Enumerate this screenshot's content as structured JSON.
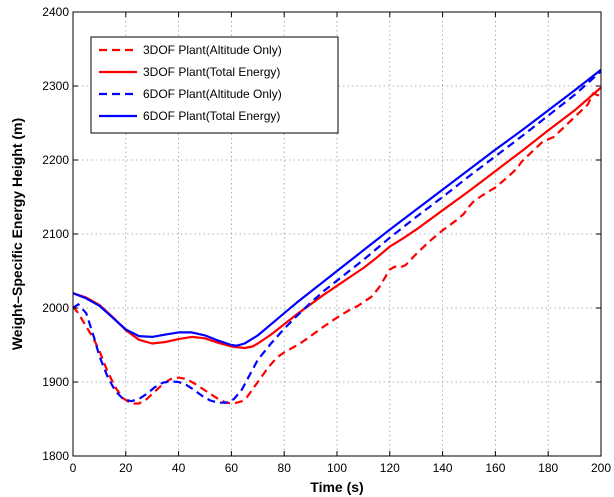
{
  "chart_data": {
    "type": "line",
    "title": "",
    "xlabel": "Time (s)",
    "ylabel": "Weight–Specific Energy Height (m)",
    "xlim": [
      0,
      200
    ],
    "ylim": [
      1800,
      2400
    ],
    "xticks": [
      0,
      20,
      40,
      60,
      80,
      100,
      120,
      140,
      160,
      180,
      200
    ],
    "yticks": [
      1800,
      1900,
      2000,
      2100,
      2200,
      2300,
      2400
    ],
    "grid": true,
    "legend_position": "top-left",
    "series": [
      {
        "name": "3DOF Plant(Altitude Only)",
        "color": "#ff0000",
        "dash": "dashed",
        "x": [
          0,
          2,
          5,
          8,
          10,
          13,
          16,
          19,
          22,
          25,
          28,
          31,
          34,
          37,
          40,
          43,
          46,
          49,
          52,
          55,
          58,
          61,
          64,
          66,
          68,
          70,
          72,
          74,
          76,
          78,
          80,
          82,
          84,
          86,
          88,
          90,
          95,
          100,
          105,
          108,
          110,
          113,
          116,
          118,
          120,
          122,
          124,
          126,
          130,
          135,
          140,
          145,
          148,
          150,
          152,
          155,
          160,
          165,
          168,
          170,
          175,
          178,
          180,
          182,
          185,
          190,
          195,
          197,
          200
        ],
        "y": [
          2002,
          1993,
          1975,
          1957,
          1942,
          1915,
          1893,
          1878,
          1871,
          1871,
          1877,
          1887,
          1897,
          1904,
          1906,
          1904,
          1898,
          1891,
          1884,
          1877,
          1872,
          1871,
          1874,
          1880,
          1890,
          1900,
          1910,
          1920,
          1928,
          1935,
          1940,
          1944,
          1948,
          1952,
          1957,
          1962,
          1975,
          1987,
          1998,
          2003,
          2008,
          2015,
          2028,
          2040,
          2052,
          2056,
          2055,
          2058,
          2073,
          2090,
          2105,
          2118,
          2127,
          2137,
          2145,
          2152,
          2163,
          2178,
          2188,
          2198,
          2215,
          2225,
          2228,
          2231,
          2241,
          2258,
          2275,
          2290,
          2286
        ]
      },
      {
        "name": "3DOF Plant(Total Energy)",
        "color": "#ff0000",
        "dash": "solid",
        "x": [
          0,
          5,
          10,
          15,
          20,
          25,
          30,
          35,
          40,
          45,
          50,
          55,
          60,
          65,
          68,
          70,
          75,
          80,
          85,
          90,
          95,
          100,
          105,
          110,
          115,
          120,
          125,
          130,
          140,
          150,
          160,
          170,
          180,
          190,
          200
        ],
        "y": [
          2020,
          2014,
          2004,
          1988,
          1970,
          1957,
          1952,
          1954,
          1958,
          1961,
          1959,
          1953,
          1948,
          1946,
          1948,
          1952,
          1964,
          1978,
          1992,
          2005,
          2018,
          2030,
          2042,
          2054,
          2068,
          2083,
          2094,
          2106,
          2132,
          2158,
          2185,
          2212,
          2240,
          2267,
          2298
        ]
      },
      {
        "name": "6DOF Plant(Altitude Only)",
        "color": "#0000ff",
        "dash": "dashed",
        "x": [
          0,
          2,
          5,
          8,
          10,
          13,
          16,
          19,
          22,
          25,
          28,
          31,
          34,
          37,
          40,
          43,
          46,
          49,
          52,
          55,
          58,
          61,
          64,
          67,
          70,
          75,
          80,
          85,
          90,
          95,
          100,
          110,
          120,
          130,
          140,
          150,
          160,
          170,
          180,
          190,
          200
        ],
        "y": [
          2000,
          2005,
          1993,
          1960,
          1935,
          1908,
          1888,
          1877,
          1874,
          1877,
          1884,
          1893,
          1899,
          1901,
          1900,
          1896,
          1889,
          1881,
          1875,
          1872,
          1872,
          1877,
          1890,
          1910,
          1930,
          1952,
          1972,
          1990,
          2007,
          2023,
          2037,
          2065,
          2095,
          2123,
          2150,
          2178,
          2205,
          2232,
          2260,
          2288,
          2320
        ]
      },
      {
        "name": "6DOF Plant(Total Energy)",
        "color": "#0000ff",
        "dash": "solid",
        "x": [
          0,
          5,
          10,
          15,
          20,
          25,
          30,
          35,
          40,
          45,
          50,
          55,
          60,
          62,
          65,
          70,
          75,
          80,
          85,
          90,
          95,
          100,
          110,
          120,
          130,
          140,
          150,
          160,
          170,
          180,
          190,
          200
        ],
        "y": [
          2020,
          2013,
          2003,
          1987,
          1971,
          1962,
          1961,
          1964,
          1967,
          1967,
          1963,
          1956,
          1950,
          1949,
          1952,
          1963,
          1978,
          1993,
          2008,
          2022,
          2036,
          2050,
          2078,
          2106,
          2133,
          2160,
          2187,
          2214,
          2240,
          2267,
          2294,
          2322
        ]
      }
    ]
  }
}
